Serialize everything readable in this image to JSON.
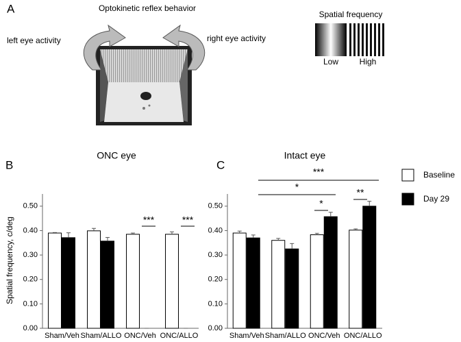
{
  "panel_a": {
    "label": "A",
    "title": "Optokinetic reflex behavior",
    "left_label": "left eye activity",
    "right_label": "right eye activity",
    "grating_title": "Spatial frequency",
    "low": "Low",
    "high": "High"
  },
  "chart_data": [
    {
      "type": "bar",
      "panel": "B",
      "title": "ONC eye",
      "y_label": "Spatial frequency, c/deg",
      "categories": [
        "Sham/Veh",
        "Sham/ALLO",
        "ONC/Veh",
        "ONC/ALLO"
      ],
      "series": [
        {
          "color": "#ffffff",
          "values": [
            0.39,
            0.399,
            0.385,
            0.385
          ],
          "errors": [
            0.002,
            0.01,
            0.005,
            0.01
          ]
        },
        {
          "color": "#000000",
          "values": [
            0.371,
            0.357,
            0,
            0
          ],
          "errors": [
            0.02,
            0.015,
            0,
            0
          ]
        }
      ],
      "ylim": [
        0,
        0.55
      ],
      "yticks": [
        {
          "value": 0,
          "label": "0.00"
        },
        {
          "value": 0.1,
          "label": "0.10"
        },
        {
          "value": 0.2,
          "label": "0.20"
        },
        {
          "value": 0.3,
          "label": "0.30"
        },
        {
          "value": 0.4,
          "label": "0.40"
        },
        {
          "value": 0.5,
          "label": "0.50"
        }
      ],
      "annotations": [
        "***",
        "***"
      ]
    },
    {
      "type": "bar",
      "panel": "C",
      "title": "Intact eye",
      "categories": [
        "Sham/Veh",
        "Sham/ALLO",
        "ONC/Veh",
        "ONC/ALLO"
      ],
      "series": [
        {
          "name": "Baseline",
          "color": "#ffffff",
          "values": [
            0.39,
            0.36,
            0.383,
            0.402
          ],
          "errors": [
            0.008,
            0.008,
            0.006,
            0.005
          ]
        },
        {
          "name": "Day 29",
          "color": "#000000",
          "values": [
            0.37,
            0.325,
            0.457,
            0.5
          ],
          "errors": [
            0.012,
            0.022,
            0.018,
            0.02
          ]
        }
      ],
      "ylim": [
        0,
        0.55
      ],
      "yticks": [
        {
          "value": 0,
          "label": "0.00"
        },
        {
          "value": 0.1,
          "label": "0.10"
        },
        {
          "value": 0.2,
          "label": "0.20"
        },
        {
          "value": 0.3,
          "label": "0.30"
        },
        {
          "value": 0.4,
          "label": "0.40"
        },
        {
          "value": 0.5,
          "label": "0.50"
        }
      ],
      "annotations": [
        "***",
        "*",
        "*",
        "**"
      ]
    }
  ]
}
